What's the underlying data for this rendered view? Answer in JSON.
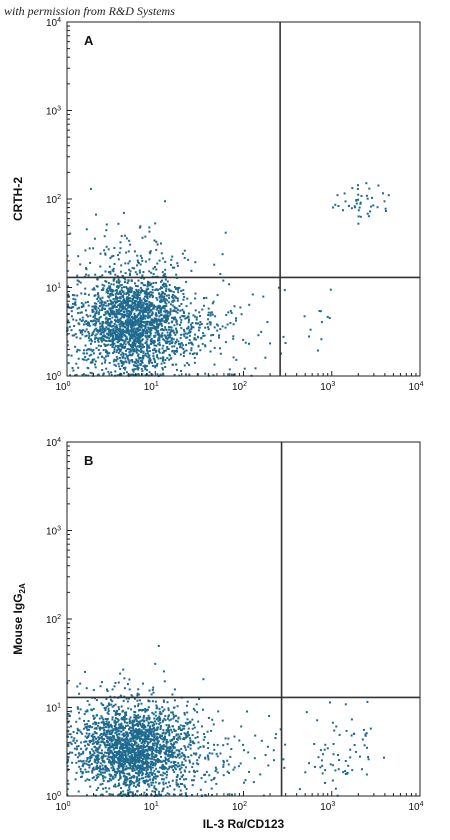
{
  "credit": "with permission from R&D Systems",
  "chart_data": [
    {
      "type": "scatter",
      "panel_label": "A",
      "xlabel": "",
      "ylabel": "CRTH-2",
      "x_scale": "log",
      "y_scale": "log",
      "xlim": [
        1,
        10000
      ],
      "ylim": [
        1,
        10000
      ],
      "x_tick_labels": [
        {
          "base": "10",
          "exp": "0"
        },
        {
          "base": "10",
          "exp": "1"
        },
        {
          "base": "10",
          "exp": "2"
        },
        {
          "base": "10",
          "exp": "3"
        },
        {
          "base": "10",
          "exp": "4"
        }
      ],
      "y_tick_labels": [
        {
          "base": "10",
          "exp": "0"
        },
        {
          "base": "10",
          "exp": "1"
        },
        {
          "base": "10",
          "exp": "2"
        },
        {
          "base": "10",
          "exp": "3"
        },
        {
          "base": "10",
          "exp": "4"
        }
      ],
      "quadrant_gates": {
        "x": 260,
        "y": 13
      },
      "populations": [
        {
          "center": [
            5.5,
            4.0
          ],
          "spread": [
            0.32,
            0.28
          ],
          "count": 2000
        },
        {
          "center": [
            25,
            3.5
          ],
          "spread": [
            0.45,
            0.3
          ],
          "count": 220
        },
        {
          "center": [
            6,
            20
          ],
          "spread": [
            0.35,
            0.25
          ],
          "count": 110
        },
        {
          "center": [
            2000,
            90
          ],
          "spread": [
            0.15,
            0.12
          ],
          "count": 45
        },
        {
          "center": [
            600,
            3
          ],
          "spread": [
            0.3,
            0.3
          ],
          "count": 12
        }
      ],
      "point_color": "#1f6a8f"
    },
    {
      "type": "scatter",
      "panel_label": "B",
      "xlabel": "IL-3 Rα/CD123",
      "ylabel": "Mouse IgG",
      "ylabel_sub": "2A",
      "x_scale": "log",
      "y_scale": "log",
      "xlim": [
        1,
        10000
      ],
      "ylim": [
        1,
        10000
      ],
      "x_tick_labels": [
        {
          "base": "10",
          "exp": "0"
        },
        {
          "base": "10",
          "exp": "1"
        },
        {
          "base": "10",
          "exp": "2"
        },
        {
          "base": "10",
          "exp": "3"
        },
        {
          "base": "10",
          "exp": "4"
        }
      ],
      "y_tick_labels": [
        {
          "base": "10",
          "exp": "0"
        },
        {
          "base": "10",
          "exp": "1"
        },
        {
          "base": "10",
          "exp": "2"
        },
        {
          "base": "10",
          "exp": "3"
        },
        {
          "base": "10",
          "exp": "4"
        }
      ],
      "quadrant_gates": {
        "x": 270,
        "y": 13
      },
      "populations": [
        {
          "center": [
            5.5,
            3.5
          ],
          "spread": [
            0.32,
            0.26
          ],
          "count": 2000
        },
        {
          "center": [
            25,
            3.0
          ],
          "spread": [
            0.45,
            0.28
          ],
          "count": 220
        },
        {
          "center": [
            1200,
            3.0
          ],
          "spread": [
            0.25,
            0.25
          ],
          "count": 70
        },
        {
          "center": [
            5,
            15
          ],
          "spread": [
            0.3,
            0.15
          ],
          "count": 40
        }
      ],
      "point_color": "#1f6a8f"
    }
  ]
}
